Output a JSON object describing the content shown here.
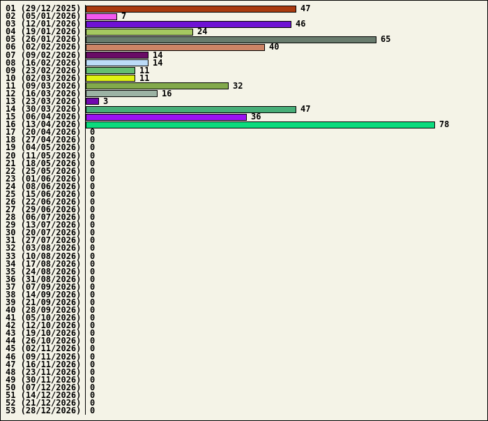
{
  "chart_data": {
    "type": "bar",
    "orientation": "horizontal",
    "title": "",
    "xlabel": "",
    "ylabel": "",
    "xlim": [
      0,
      88
    ],
    "grid": false,
    "legend": null,
    "background_color": "#F4F3E7",
    "axis_color": "#000000",
    "text_color": "#000000",
    "categories": [
      "01 (29/12/2025)",
      "02 (05/01/2026)",
      "03 (12/01/2026)",
      "04 (19/01/2026)",
      "05 (26/01/2026)",
      "06 (02/02/2026)",
      "07 (09/02/2026)",
      "08 (16/02/2026)",
      "09 (23/02/2026)",
      "10 (02/03/2026)",
      "11 (09/03/2026)",
      "12 (16/03/2026)",
      "13 (23/03/2026)",
      "14 (30/03/2026)",
      "15 (06/04/2026)",
      "16 (13/04/2026)",
      "17 (20/04/2026)",
      "18 (27/04/2026)",
      "19 (04/05/2026)",
      "20 (11/05/2026)",
      "21 (18/05/2026)",
      "22 (25/05/2026)",
      "23 (01/06/2026)",
      "24 (08/06/2026)",
      "25 (15/06/2026)",
      "26 (22/06/2026)",
      "27 (29/06/2026)",
      "28 (06/07/2026)",
      "29 (13/07/2026)",
      "30 (20/07/2026)",
      "31 (27/07/2026)",
      "32 (03/08/2026)",
      "33 (10/08/2026)",
      "34 (17/08/2026)",
      "35 (24/08/2026)",
      "36 (31/08/2026)",
      "37 (07/09/2026)",
      "38 (14/09/2026)",
      "39 (21/09/2026)",
      "40 (28/09/2026)",
      "41 (05/10/2026)",
      "42 (12/10/2026)",
      "43 (19/10/2026)",
      "44 (26/10/2026)",
      "45 (02/11/2026)",
      "46 (09/11/2026)",
      "47 (16/11/2026)",
      "48 (23/11/2026)",
      "49 (30/11/2026)",
      "50 (07/12/2026)",
      "51 (14/12/2026)",
      "52 (21/12/2026)",
      "53 (28/12/2026)"
    ],
    "values": [
      47,
      7,
      46,
      24,
      65,
      40,
      14,
      14,
      11,
      11,
      32,
      16,
      3,
      47,
      36,
      78,
      0,
      0,
      0,
      0,
      0,
      0,
      0,
      0,
      0,
      0,
      0,
      0,
      0,
      0,
      0,
      0,
      0,
      0,
      0,
      0,
      0,
      0,
      0,
      0,
      0,
      0,
      0,
      0,
      0,
      0,
      0,
      0,
      0,
      0,
      0,
      0,
      0
    ],
    "bar_colors": [
      "#A93A0F",
      "#F258EE",
      "#6E12D4",
      "#A6C861",
      "#687B6D",
      "#CD8466",
      "#690C66",
      "#BCDCF8",
      "#65BE72",
      "#DFF313",
      "#82A94B",
      "#9CB3A4",
      "#7209AF",
      "#47AE78",
      "#9B12F2",
      "#0BDB7D"
    ]
  }
}
